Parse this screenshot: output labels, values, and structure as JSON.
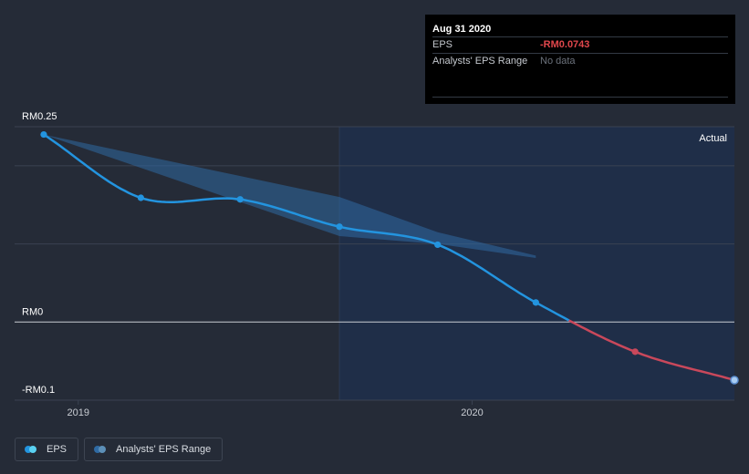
{
  "colors": {
    "background": "#252b37",
    "actual_region": "#1f2e48",
    "eps_positive": "#2394df",
    "eps_negative": "#c9485b",
    "range_fill": "#2f6aa3",
    "grid": "#3a4252",
    "zero_line": "#c8ccd2",
    "tooltip_bg": "#000000",
    "negative_text": "#e0474c"
  },
  "tooltip": {
    "date": "Aug 31 2020",
    "rows": [
      {
        "label": "EPS",
        "value": "-RM0.0743"
      },
      {
        "label": "Analysts' EPS Range",
        "value": "No data"
      }
    ]
  },
  "legend": {
    "items": [
      {
        "label": "EPS",
        "icon": "eps-swatch-icon"
      },
      {
        "label": "Analysts' EPS Range",
        "icon": "range-swatch-icon"
      }
    ]
  },
  "chart_data": {
    "type": "line",
    "title": "",
    "xlabel": "",
    "ylabel": "",
    "y_axis_labels": [
      "RM0.25",
      "RM0",
      "-RM0.1"
    ],
    "y_ticks": [
      0.25,
      0,
      -0.1
    ],
    "x_axis_labels": [
      "2019",
      "2020"
    ],
    "x_ticks": [
      "2019-01-01",
      "2020-01-01"
    ],
    "xlim": [
      "2018-11-03",
      "2020-08-31"
    ],
    "ylim": [
      -0.1,
      0.25
    ],
    "region_label": "Actual",
    "region_start": "2019-08-31",
    "grid": true,
    "legend_position": "bottom-left",
    "series": [
      {
        "name": "EPS",
        "type": "line",
        "x": [
          "2018-11-30",
          "2019-02-28",
          "2019-05-31",
          "2019-08-31",
          "2019-11-30",
          "2020-02-29",
          "2020-05-31",
          "2020-08-31"
        ],
        "y": [
          0.24,
          0.159,
          0.157,
          0.122,
          0.099,
          0.025,
          -0.038,
          -0.0743
        ]
      },
      {
        "name": "Analysts' EPS Range",
        "type": "area",
        "x": [
          "2018-11-30",
          "2019-08-31",
          "2019-11-30",
          "2020-02-29"
        ],
        "y_high": [
          0.24,
          0.16,
          0.115,
          0.085
        ],
        "y_low": [
          0.24,
          0.11,
          0.1,
          0.082
        ]
      }
    ]
  }
}
